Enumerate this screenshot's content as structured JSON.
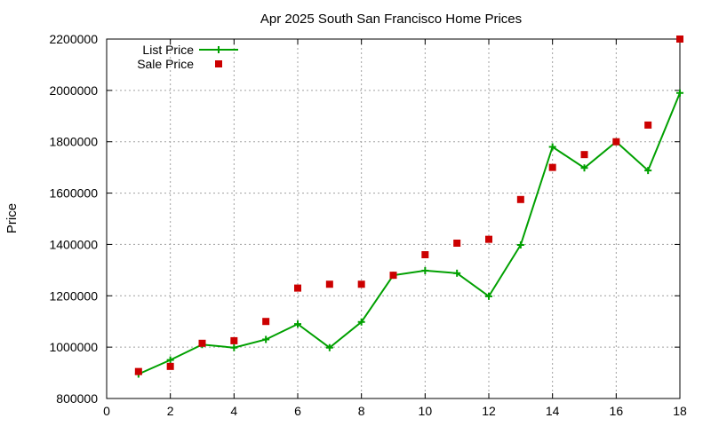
{
  "chart_data": {
    "type": "line",
    "title": "Apr 2025 South San Francisco Home Prices",
    "xlabel": "",
    "ylabel": "Price",
    "xlim": [
      0,
      18
    ],
    "ylim": [
      800000,
      2200000
    ],
    "x_ticks": [
      0,
      2,
      4,
      6,
      8,
      10,
      12,
      14,
      16,
      18
    ],
    "y_ticks": [
      800000,
      1000000,
      1200000,
      1400000,
      1600000,
      1800000,
      2000000,
      2200000
    ],
    "grid": true,
    "legend_position": "top-left",
    "series": [
      {
        "name": "List Price",
        "style": "line-with-points",
        "color": "#00a000",
        "x": [
          1,
          2,
          3,
          4,
          5,
          6,
          7,
          8,
          9,
          10,
          11,
          12,
          13,
          14,
          15,
          16,
          17,
          18
        ],
        "y": [
          895000,
          950000,
          1010000,
          998000,
          1030000,
          1090000,
          998000,
          1098000,
          1280000,
          1298000,
          1288000,
          1198000,
          1398000,
          1780000,
          1698000,
          1800000,
          1688000,
          1990000
        ]
      },
      {
        "name": "Sale Price",
        "style": "points",
        "color": "#cc0000",
        "x": [
          1,
          2,
          3,
          4,
          5,
          6,
          7,
          8,
          9,
          10,
          11,
          12,
          13,
          14,
          15,
          16,
          17,
          18
        ],
        "y": [
          905000,
          925000,
          1015000,
          1025000,
          1100000,
          1230000,
          1245000,
          1245000,
          1280000,
          1360000,
          1405000,
          1420000,
          1575000,
          1700000,
          1750000,
          1800000,
          1865000,
          2200000
        ]
      }
    ]
  }
}
